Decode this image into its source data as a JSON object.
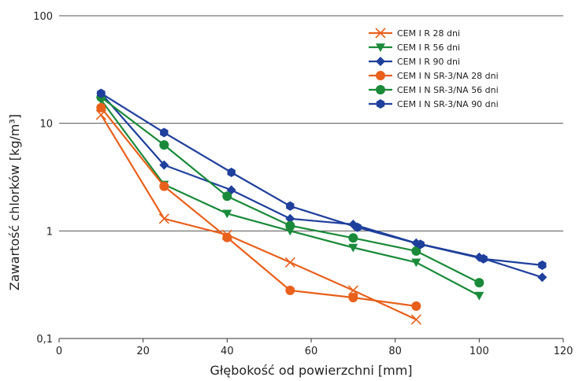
{
  "chart_data": {
    "type": "line",
    "title": "",
    "xlabel": "Głębokość od powierzchni [mm]",
    "ylabel": "Zawartość chlorków [kg/m³]",
    "xlim": [
      0,
      120
    ],
    "ylim": [
      0.1,
      100
    ],
    "y_scale": "log",
    "x_ticks": [
      "0",
      "20",
      "40",
      "60",
      "80",
      "100",
      "120"
    ],
    "y_ticks": [
      "100",
      "10",
      "1",
      "0,1"
    ],
    "grid": "horizontal",
    "legend_position": "top-right",
    "series": [
      {
        "name": "CEM I R 28 dni",
        "color": "#e8601c",
        "marker": "x",
        "x": [
          10,
          25,
          40,
          55,
          70,
          85
        ],
        "y": [
          12,
          1.3,
          0.92,
          0.51,
          0.28,
          0.15
        ]
      },
      {
        "name": "CEM I R 56 dni",
        "color": "#1a8a3a",
        "marker": "triangle-down",
        "x": [
          10,
          25,
          40,
          55,
          70,
          85,
          100
        ],
        "y": [
          16.5,
          2.7,
          1.45,
          1.0,
          0.7,
          0.51,
          0.25
        ]
      },
      {
        "name": "CEM I R 90 dni",
        "color": "#1f3f9c",
        "marker": "diamond",
        "x": [
          10,
          25,
          41,
          55,
          70,
          85,
          100,
          115
        ],
        "y": [
          19,
          4.1,
          2.4,
          1.3,
          1.15,
          0.77,
          0.57,
          0.37
        ]
      },
      {
        "name": "CEM I N SR-3/NA 28 dni",
        "color": "#e8601c",
        "marker": "circle",
        "x": [
          10,
          25,
          40,
          55,
          70,
          85
        ],
        "y": [
          14,
          2.6,
          0.87,
          0.28,
          0.24,
          0.2
        ]
      },
      {
        "name": "CEM I N SR-3/NA 56 dni",
        "color": "#1a8a3a",
        "marker": "circle",
        "x": [
          10,
          25,
          40,
          55,
          70,
          85,
          100
        ],
        "y": [
          17.5,
          6.3,
          2.1,
          1.12,
          0.86,
          0.65,
          0.33
        ]
      },
      {
        "name": "CEM I N SR-3/NA 90 dni",
        "color": "#1f3f9c",
        "marker": "hexagon",
        "x": [
          10,
          25,
          41,
          55,
          71,
          86,
          101,
          115
        ],
        "y": [
          19,
          8.2,
          3.5,
          1.7,
          1.08,
          0.75,
          0.55,
          0.48
        ]
      }
    ]
  }
}
